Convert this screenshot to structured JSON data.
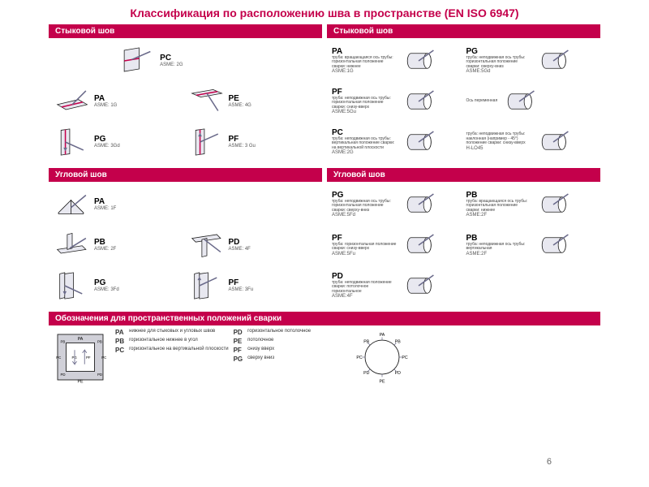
{
  "title": "Классификация по расположению шва в пространстве (EN ISO 6947)",
  "page_number": "6",
  "colors": {
    "accent": "#c4004b",
    "stroke": "#1a1a1a",
    "fill": "#e8e8f0",
    "arrow": "#6a6a8a"
  },
  "left": {
    "butt": {
      "title": "Стыковой шов",
      "items": [
        {
          "code": "PC",
          "asme": "ASME: 2G"
        },
        {
          "code": "PA",
          "asme": "ASME: 1G"
        },
        {
          "code": "PE",
          "asme": "ASME: 4G"
        },
        {
          "code": "PG",
          "asme": "ASME: 3Gd"
        },
        {
          "code": "PF",
          "asme": "ASME: 3 Gu"
        }
      ]
    },
    "fillet": {
      "title": "Угловой шов",
      "items": [
        {
          "code": "PA",
          "asme": "ASME: 1F"
        },
        {
          "code": "PB",
          "asme": "ASME: 2F"
        },
        {
          "code": "PD",
          "asme": "ASME: 4F"
        },
        {
          "code": "PG",
          "asme": "ASME: 3Fd"
        },
        {
          "code": "PF",
          "asme": "ASME: 3Fu"
        }
      ]
    }
  },
  "right": {
    "butt": {
      "title": "Стыковой шов",
      "items": [
        {
          "code": "PA",
          "desc": "труба: вращающаяся ось трубы: горизонтальная положение сварки: нижнее",
          "asme": "ASME:1G"
        },
        {
          "code": "PG",
          "desc": "труба: неподвижная ось трубы: горизонтальная положение сварки: сверху-вниз",
          "asme": "ASME:5Gd"
        },
        {
          "code": "PF",
          "desc": "труба: неподвижная ось трубы: горизонтальная положение сварки: снизу-вверх",
          "asme": "ASME:5Gu"
        },
        {
          "code": "",
          "desc": "Ось переменная",
          "asme": ""
        },
        {
          "code": "PC",
          "desc": "труба: неподвижная ось трубы: вертикальная положение сварки: на вертикальной плоскости",
          "asme": "ASME:2G"
        },
        {
          "code": "",
          "desc": "труба: неподвижная ось трубы: наклонная (например - 45°) положение сварки: снизу-вверх",
          "asme": "H-LO45"
        }
      ]
    },
    "fillet": {
      "title": "Угловой шов",
      "items": [
        {
          "code": "PG",
          "desc": "труба: неподвижная ось трубы: горизонтальная положение сварки: сверху-вниз",
          "asme": "ASME:5Fd"
        },
        {
          "code": "PB",
          "desc": "труба: вращающаяся ось трубы: горизонтальная положение сварки: нижнее",
          "asme": "ASME:2F"
        },
        {
          "code": "PF",
          "desc": "труба: горизонтальная положение сварки: снизу-вверх",
          "asme": "ASME:5Fu"
        },
        {
          "code": "PB",
          "desc": "труба: неподвижная ось трубы: вертикальная",
          "asme": "ASME:2F"
        },
        {
          "code": "PD",
          "desc": "труба: неподвижная положение сварки: потолочное горизонтальное",
          "asme": "ASME:4F"
        }
      ]
    }
  },
  "legend": {
    "title": "Обозначения для пространственных положений сварки",
    "rows": [
      {
        "k": "PA",
        "v": "нижнее для стыковых и угловых швов"
      },
      {
        "k": "PD",
        "v": "горизонтальное потолочное"
      },
      {
        "k": "PB",
        "v": "горизонтальное нижнее в угол"
      },
      {
        "k": "PE",
        "v": "потолочное"
      },
      {
        "k": "PC",
        "v": "горизонтальное на вертикальной плоскости"
      },
      {
        "k": "PF",
        "v": "снизу вверх"
      },
      {
        "k": "",
        "v": ""
      },
      {
        "k": "PG",
        "v": "сверху вниз"
      }
    ],
    "circle_labels": [
      "PA",
      "PB",
      "PC",
      "PD",
      "PE",
      "PD",
      "PC",
      "PB"
    ]
  }
}
